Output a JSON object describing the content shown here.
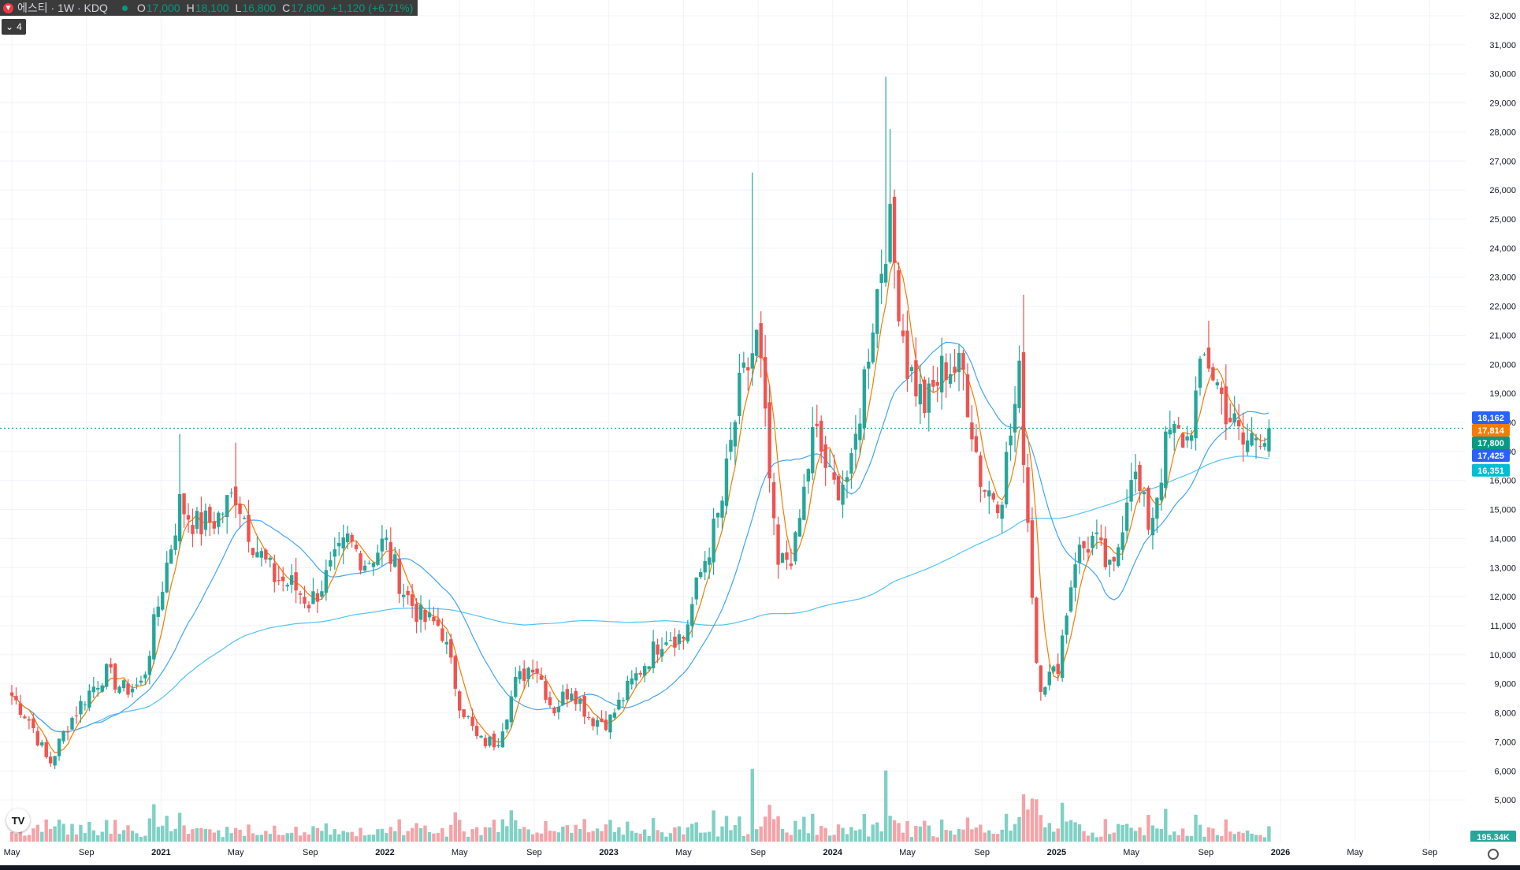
{
  "legend": {
    "symbol": "에스티 · 1W · KDQ",
    "o_label": "O",
    "o_value": "17,000",
    "h_label": "H",
    "h_value": "18,100",
    "l_label": "L",
    "l_value": "16,800",
    "c_label": "C",
    "c_value": "17,800",
    "change": "+1,120 (+6.71%)"
  },
  "indicators_button": {
    "label": "4"
  },
  "time_axis": [
    "May",
    "Sep",
    "2021",
    "May",
    "Sep",
    "2022",
    "May",
    "Sep",
    "2023",
    "May",
    "Sep",
    "2024",
    "May",
    "Sep",
    "2025",
    "May",
    "Sep",
    "2026",
    "May",
    "Sep"
  ],
  "colors": {
    "up": "#26a69a",
    "down": "#ef5350",
    "ma_fast": "#f57c00",
    "ma_mid": "#42a5f5",
    "ma_slow": "#4fc3f7",
    "last_price": "#089981"
  },
  "chart_data": {
    "type": "candlestick",
    "interval": "1W",
    "ylim": [
      4000,
      32000
    ],
    "yticks": [
      5000,
      6000,
      7000,
      8000,
      9000,
      10000,
      11000,
      12000,
      13000,
      14000,
      15000,
      16000,
      17000,
      18000,
      19000,
      20000,
      21000,
      22000,
      23000,
      24000,
      25000,
      26000,
      27000,
      28000,
      29000,
      30000,
      31000,
      32000
    ],
    "x_range": [
      "2020-05",
      "2026-10"
    ],
    "anchors": [
      [
        "2020-05",
        8600
      ],
      [
        "2020-06",
        7700
      ],
      [
        "2020-07",
        6200
      ],
      [
        "2020-08",
        7600
      ],
      [
        "2020-09",
        8600
      ],
      [
        "2020-10",
        9400
      ],
      [
        "2020-11",
        8800
      ],
      [
        "2020-12",
        9000
      ],
      [
        "2021-01",
        12200
      ],
      [
        "2021-02",
        15200
      ],
      [
        "2021-03",
        14400
      ],
      [
        "2021-04",
        14700
      ],
      [
        "2021-05",
        15600
      ],
      [
        "2021-06",
        13800
      ],
      [
        "2021-07",
        12700
      ],
      [
        "2021-08",
        12400
      ],
      [
        "2021-09",
        11800
      ],
      [
        "2021-10",
        12800
      ],
      [
        "2021-11",
        13900
      ],
      [
        "2021-12",
        13200
      ],
      [
        "2022-01",
        13900
      ],
      [
        "2022-02",
        12200
      ],
      [
        "2022-03",
        11200
      ],
      [
        "2022-04",
        11000
      ],
      [
        "2022-05",
        8400
      ],
      [
        "2022-06",
        7000
      ],
      [
        "2022-07",
        7000
      ],
      [
        "2022-08",
        9000
      ],
      [
        "2022-09",
        9800
      ],
      [
        "2022-10",
        8100
      ],
      [
        "2022-11",
        8900
      ],
      [
        "2022-12",
        7800
      ],
      [
        "2023-01",
        7700
      ],
      [
        "2023-02",
        8800
      ],
      [
        "2023-03",
        9800
      ],
      [
        "2023-04",
        10700
      ],
      [
        "2023-05",
        10600
      ],
      [
        "2023-06",
        13000
      ],
      [
        "2023-07",
        15000
      ],
      [
        "2023-08",
        19000
      ],
      [
        "2023-09",
        21000
      ],
      [
        "2023-10",
        12900
      ],
      [
        "2023-11",
        13700
      ],
      [
        "2023-12",
        17800
      ],
      [
        "2024-01",
        15700
      ],
      [
        "2024-02",
        16300
      ],
      [
        "2024-03",
        21000
      ],
      [
        "2024-04",
        25000
      ],
      [
        "2024-05",
        20000
      ],
      [
        "2024-06",
        18500
      ],
      [
        "2024-07",
        20000
      ],
      [
        "2024-08",
        19700
      ],
      [
        "2024-09",
        15800
      ],
      [
        "2024-10",
        15400
      ],
      [
        "2024-11",
        19500
      ],
      [
        "2024-12",
        9000
      ],
      [
        "2025-01",
        9400
      ],
      [
        "2025-02",
        13400
      ],
      [
        "2025-03",
        14000
      ],
      [
        "2025-04",
        12600
      ],
      [
        "2025-05",
        16500
      ],
      [
        "2025-06",
        14400
      ],
      [
        "2025-07",
        17600
      ],
      [
        "2025-08",
        17400
      ],
      [
        "2025-09",
        20400
      ],
      [
        "2025-10",
        18600
      ],
      [
        "2025-11",
        17200
      ],
      [
        "2025-12",
        17800
      ]
    ],
    "last": {
      "open": 17000,
      "high": 18100,
      "low": 16800,
      "close": 17800,
      "change": 1120,
      "change_pct": 6.71
    },
    "volume_last": "195.34K",
    "price_labels": [
      {
        "value": 18162,
        "text": "18,162",
        "color": "#2962ff"
      },
      {
        "value": 17814,
        "text": "17,814",
        "color": "#f57c00"
      },
      {
        "value": 17800,
        "text": "17,800",
        "color": "#089981"
      },
      {
        "value": 17425,
        "text": "17,425",
        "color": "#2962ff"
      },
      {
        "value": 16351,
        "text": "16,351",
        "color": "#00bcd4"
      }
    ]
  }
}
